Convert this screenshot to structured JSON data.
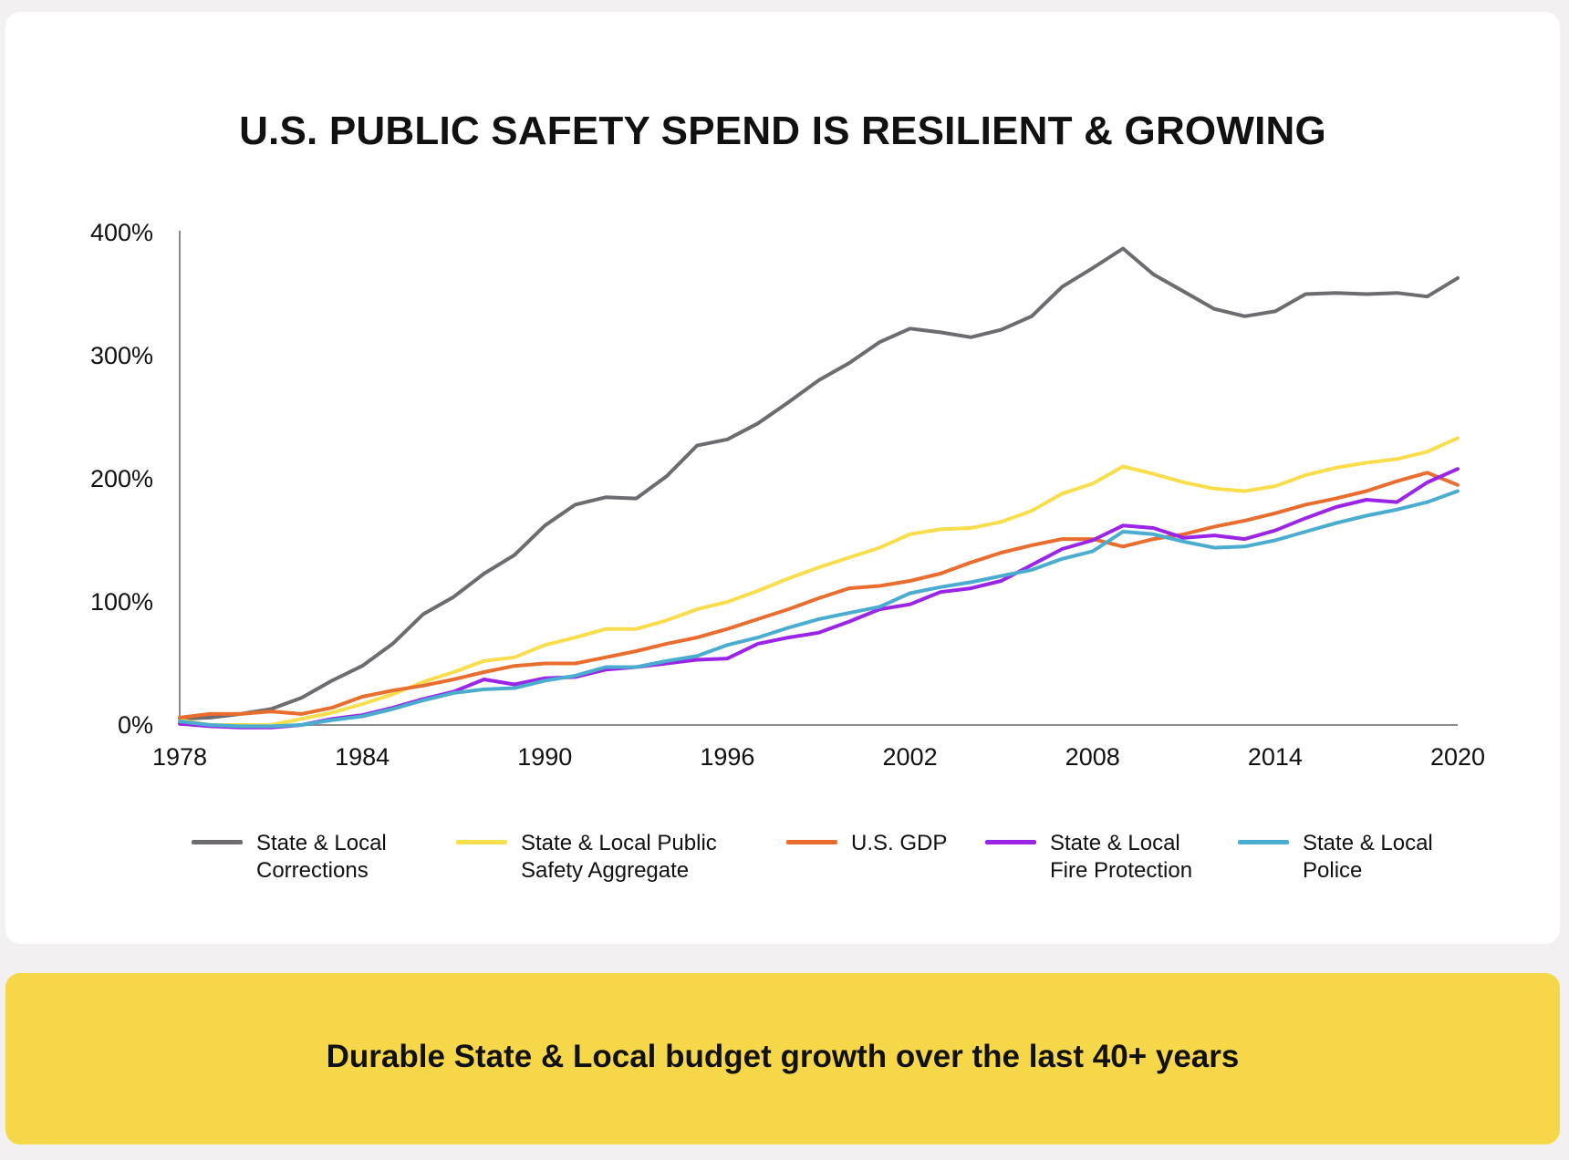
{
  "title": "U.S. PUBLIC SAFETY SPEND IS RESILIENT & GROWING",
  "banner": "Durable State & Local budget growth over the last 40+ years",
  "chart_data": {
    "type": "line",
    "title": "U.S. PUBLIC SAFETY SPEND IS RESILIENT & GROWING",
    "xlabel": "",
    "ylabel": "",
    "xlim": [
      1978,
      2020
    ],
    "ylim": [
      0,
      400
    ],
    "xticks": [
      1978,
      1984,
      1990,
      1996,
      2002,
      2008,
      2014,
      2020
    ],
    "yticks": [
      0,
      100,
      200,
      300,
      400
    ],
    "ytick_labels": [
      "0%",
      "100%",
      "200%",
      "300%",
      "400%"
    ],
    "legend_position": "bottom",
    "grid": false,
    "x": [
      1978,
      1979,
      1980,
      1981,
      1982,
      1983,
      1984,
      1985,
      1986,
      1987,
      1988,
      1989,
      1990,
      1991,
      1992,
      1993,
      1994,
      1995,
      1996,
      1997,
      1998,
      1999,
      2000,
      2001,
      2002,
      2003,
      2004,
      2005,
      2006,
      2007,
      2008,
      2009,
      2010,
      2011,
      2012,
      2013,
      2014,
      2015,
      2016,
      2017,
      2018,
      2019,
      2020
    ],
    "series": [
      {
        "name": "State & Local Corrections",
        "label_lines": [
          "State & Local",
          "Corrections"
        ],
        "color": "#6d6b70",
        "values": [
          5,
          6,
          9,
          13,
          22,
          36,
          48,
          66,
          90,
          104,
          123,
          138,
          162,
          179,
          185,
          184,
          202,
          227,
          232,
          245,
          262,
          280,
          294,
          311,
          322,
          319,
          315,
          321,
          332,
          356,
          371,
          387,
          366,
          352,
          338,
          332,
          336,
          350,
          351,
          350,
          351,
          348,
          363
        ]
      },
      {
        "name": "State & Local Public Safety Aggregate",
        "label_lines": [
          "State & Local Public",
          "Safety Aggregate"
        ],
        "color": "#f8dd4c",
        "values": [
          4,
          0,
          0,
          0,
          5,
          10,
          17,
          25,
          35,
          43,
          52,
          55,
          65,
          71,
          78,
          78,
          85,
          94,
          100,
          109,
          119,
          128,
          136,
          144,
          155,
          159,
          160,
          165,
          174,
          188,
          196,
          210,
          204,
          197,
          192,
          190,
          194,
          203,
          209,
          213,
          216,
          222,
          233
        ]
      },
      {
        "name": "U.S. GDP",
        "label_lines": [
          "U.S. GDP"
        ],
        "color": "#e96d2e",
        "values": [
          6,
          9,
          9,
          11,
          9,
          14,
          23,
          28,
          32,
          37,
          43,
          48,
          50,
          50,
          55,
          60,
          66,
          71,
          78,
          86,
          94,
          103,
          111,
          113,
          117,
          123,
          132,
          140,
          146,
          151,
          151,
          145,
          151,
          155,
          161,
          166,
          172,
          179,
          184,
          190,
          198,
          205,
          195
        ]
      },
      {
        "name": "State & Local Fire Protection",
        "label_lines": [
          "State & Local",
          "Fire Protection"
        ],
        "color": "#9b25e6",
        "values": [
          1,
          -1,
          -2,
          -2,
          0,
          5,
          8,
          14,
          21,
          27,
          37,
          33,
          38,
          39,
          45,
          47,
          50,
          53,
          54,
          66,
          71,
          75,
          84,
          94,
          98,
          108,
          111,
          117,
          130,
          143,
          150,
          162,
          160,
          152,
          154,
          151,
          158,
          168,
          177,
          183,
          181,
          197,
          208
        ]
      },
      {
        "name": "State & Local Police",
        "label_lines": [
          "State & Local",
          "Police"
        ],
        "color": "#4aaccf",
        "values": [
          3,
          0,
          -1,
          -1,
          0,
          4,
          7,
          13,
          20,
          26,
          29,
          30,
          36,
          40,
          47,
          47,
          52,
          56,
          65,
          71,
          79,
          86,
          91,
          96,
          107,
          112,
          116,
          121,
          126,
          135,
          141,
          157,
          155,
          149,
          144,
          145,
          150,
          157,
          164,
          170,
          175,
          181,
          190
        ]
      }
    ]
  }
}
